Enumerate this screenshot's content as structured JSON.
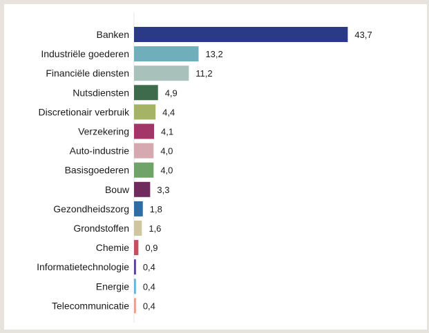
{
  "chart_data": {
    "type": "bar",
    "orientation": "horizontal",
    "title": "",
    "xlabel": "",
    "ylabel": "",
    "grid": false,
    "legend": "none",
    "xlim": [
      0,
      45
    ],
    "categories": [
      "Banken",
      "Industriële goederen",
      "Financiële diensten",
      "Nutsdiensten",
      "Discretionair verbruik",
      "Verzekering",
      "Auto-industrie",
      "Basisgoederen",
      "Bouw",
      "Gezondheidszorg",
      "Grondstoffen",
      "Chemie",
      "Informatietechnologie",
      "Energie",
      "Telecommunicatie"
    ],
    "values": [
      43.7,
      13.2,
      11.2,
      4.9,
      4.4,
      4.1,
      4.0,
      4.0,
      3.3,
      1.8,
      1.6,
      0.9,
      0.4,
      0.4,
      0.4
    ],
    "value_labels": [
      "43,7",
      "13,2",
      "11,2",
      "4,9",
      "4,4",
      "4,1",
      "4,0",
      "4,0",
      "3,3",
      "1,8",
      "1,6",
      "0,9",
      "0,4",
      "0,4",
      "0,4"
    ],
    "colors": [
      "#2b3a86",
      "#6fafbb",
      "#a8c2bb",
      "#3d6b4b",
      "#a4b464",
      "#a33668",
      "#d6a8b0",
      "#6fa368",
      "#6e2b5c",
      "#2d6ea8",
      "#cfc6a0",
      "#c24f62",
      "#5a3f9a",
      "#6bb3d8",
      "#e8a088"
    ]
  }
}
